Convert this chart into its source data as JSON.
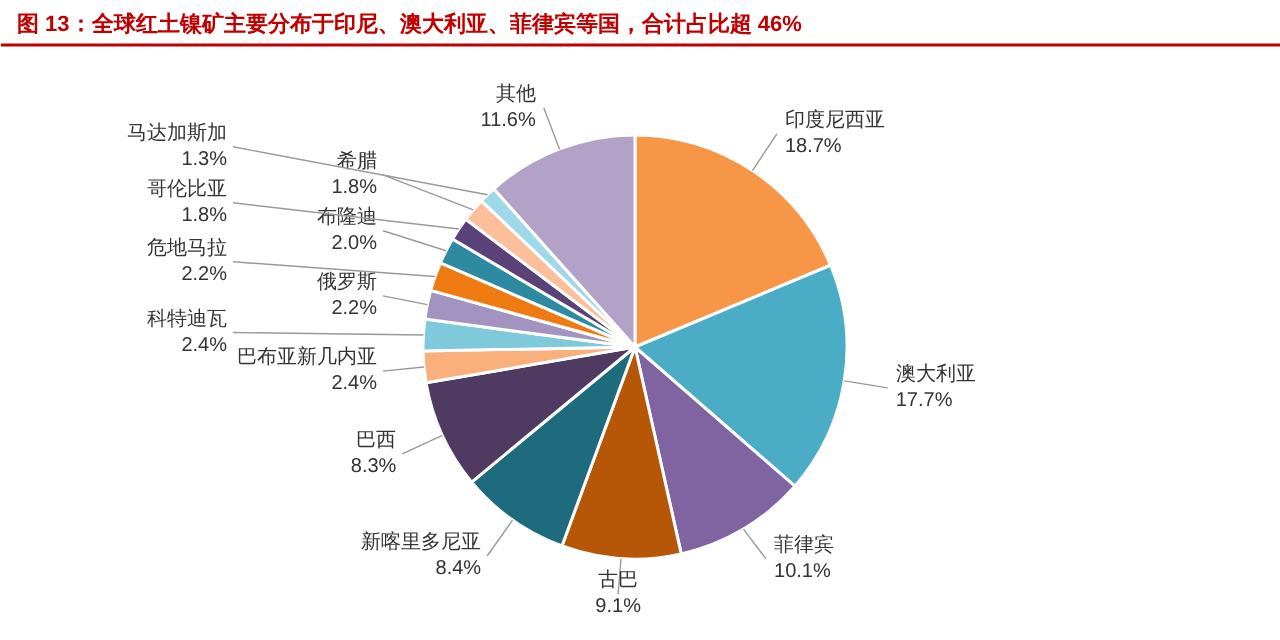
{
  "chart_data": {
    "type": "pie",
    "title": "图 13：全球红土镍矿主要分布于印尼、澳大利亚、菲律宾等国，合计占比超 46%",
    "categories": [
      "印度尼西亚",
      "澳大利亚",
      "菲律宾",
      "古巴",
      "新喀里多尼亚",
      "巴西",
      "巴布亚新几内亚",
      "科特迪瓦",
      "俄罗斯",
      "危地马拉",
      "布隆迪",
      "哥伦比亚",
      "希腊",
      "马达加斯加",
      "其他"
    ],
    "values": [
      18.7,
      17.7,
      10.1,
      9.1,
      8.4,
      8.3,
      2.4,
      2.4,
      2.2,
      2.2,
      2.0,
      1.8,
      1.8,
      1.3,
      11.6
    ],
    "value_labels": [
      "18.7%",
      "17.7%",
      "10.1%",
      "9.1%",
      "8.4%",
      "8.3%",
      "2.4%",
      "2.4%",
      "2.2%",
      "2.2%",
      "2.0%",
      "1.8%",
      "1.8%",
      "1.3%",
      "11.6%"
    ],
    "colors": [
      "#f79646",
      "#4bacc6",
      "#8064a2",
      "#b65708",
      "#1f6b7e",
      "#4f3b62",
      "#fab07a",
      "#7ecadb",
      "#a393c0",
      "#f07a12",
      "#2d8aa0",
      "#5a4278",
      "#fbc09a",
      "#9fd8e8",
      "#b3a2c7"
    ]
  }
}
